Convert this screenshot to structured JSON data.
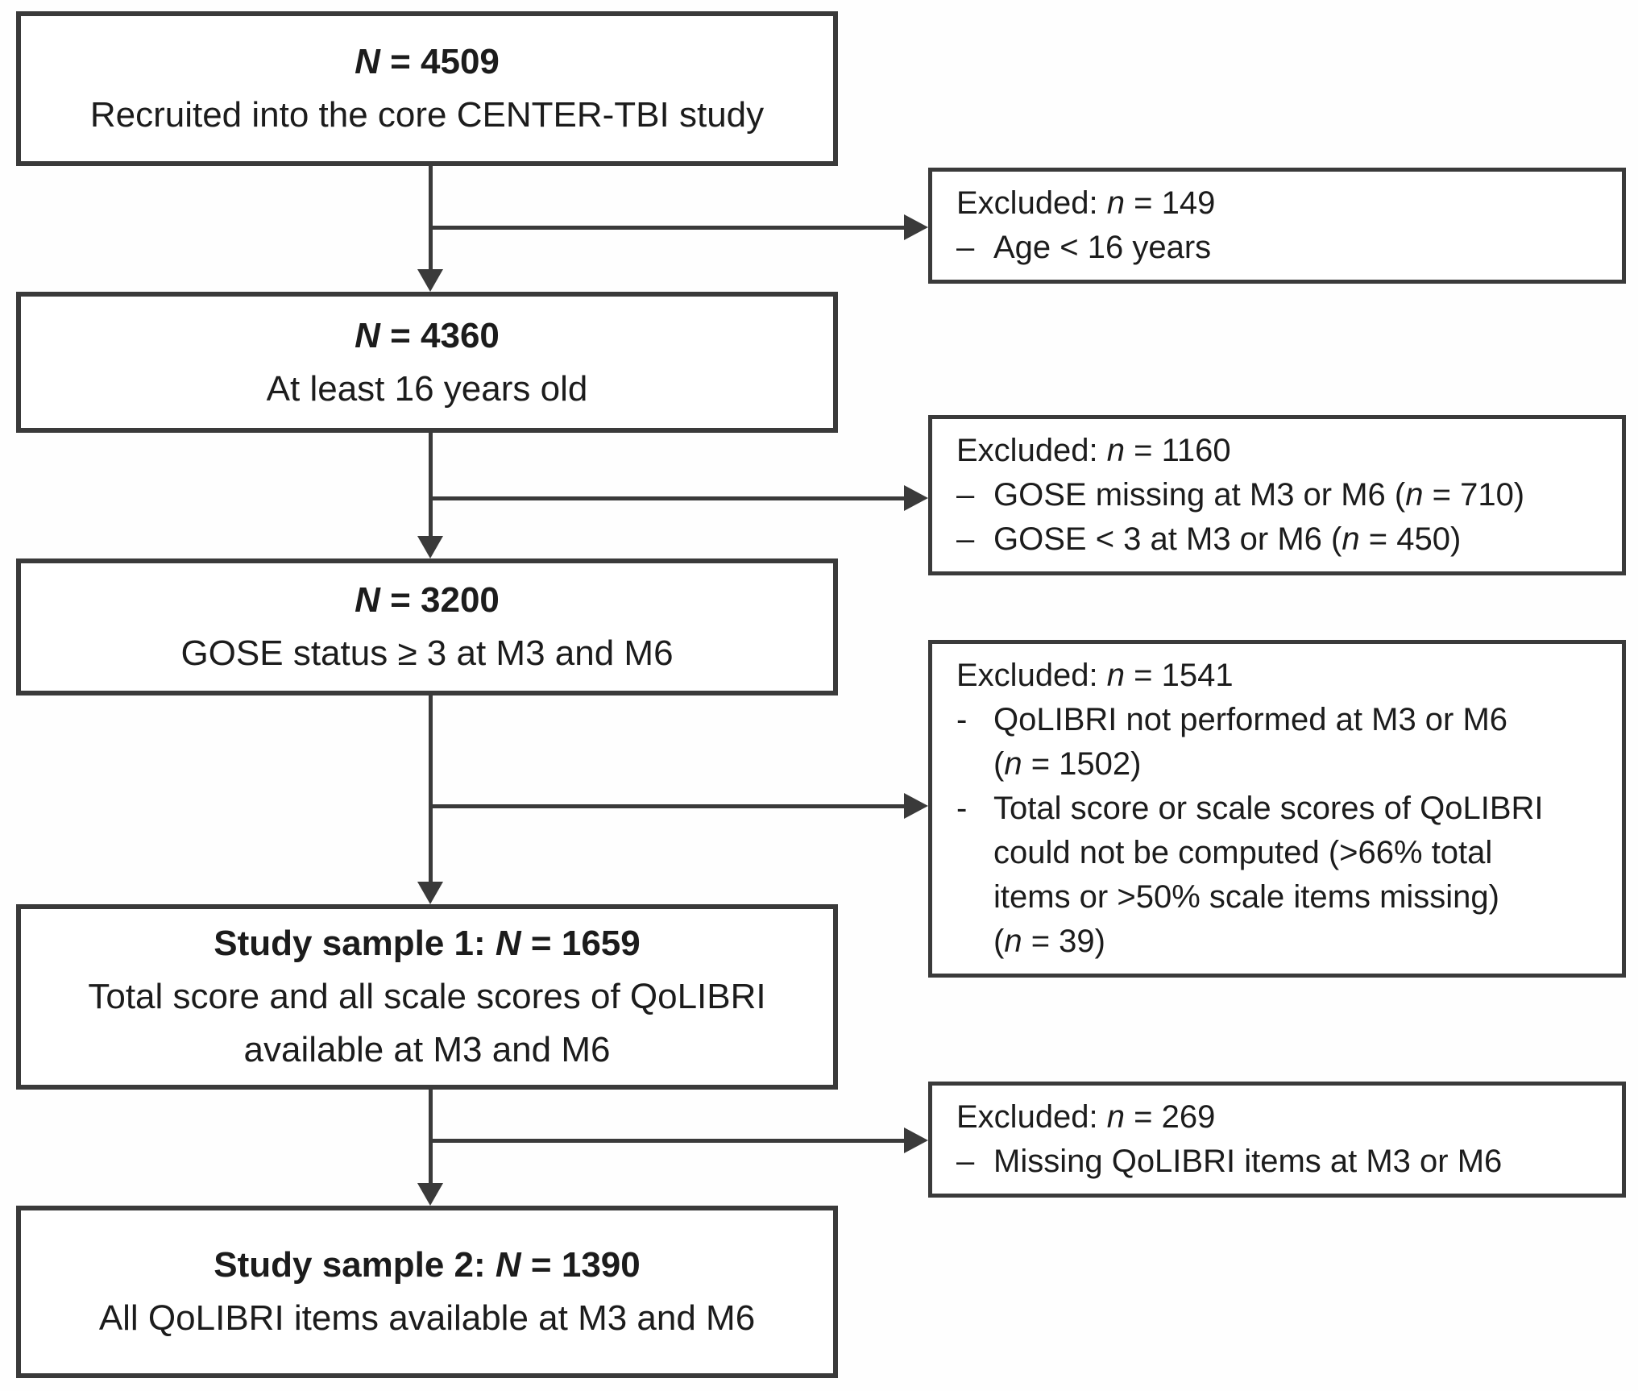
{
  "colors": {
    "border": "#3a3a3a",
    "text": "#1c1c1c",
    "background": "#ffffff"
  },
  "main_boxes": [
    {
      "name": "recruited",
      "heading": [
        {
          "t": "N",
          "bi": true
        },
        {
          "t": " = 4509",
          "b": true
        }
      ],
      "body_lines": [
        "Recruited into the core CENTER-TBI study"
      ]
    },
    {
      "name": "age-16plus",
      "heading": [
        {
          "t": "N",
          "bi": true
        },
        {
          "t": " = 4360",
          "b": true
        }
      ],
      "body_lines": [
        "At least 16 years old"
      ]
    },
    {
      "name": "gose-ge3",
      "heading": [
        {
          "t": "N",
          "bi": true
        },
        {
          "t": " = 3200",
          "b": true
        }
      ],
      "body_lines": [
        "GOSE status ≥ 3 at M3 and M6"
      ]
    },
    {
      "name": "study-sample-1",
      "heading": [
        {
          "t": "Study sample 1: ",
          "b": true
        },
        {
          "t": "N",
          "bi": true
        },
        {
          "t": " = 1659",
          "b": true
        }
      ],
      "body_lines": [
        "Total score and all scale scores of QoLIBRI",
        "available at M3 and M6"
      ]
    },
    {
      "name": "study-sample-2",
      "heading": [
        {
          "t": "Study sample 2: ",
          "b": true
        },
        {
          "t": "N",
          "bi": true
        },
        {
          "t": " = 1390",
          "b": true
        }
      ],
      "body_lines": [
        "All QoLIBRI items available at M3 and M6"
      ]
    }
  ],
  "exclusion_boxes": [
    {
      "name": "excluded-under-16",
      "heading": [
        {
          "t": "Excluded: "
        },
        {
          "t": "n",
          "i": true
        },
        {
          "t": " = 149"
        }
      ],
      "items": [
        {
          "bullet": "–",
          "lines": [
            [
              {
                "t": "Age < 16 years"
              }
            ]
          ]
        }
      ]
    },
    {
      "name": "excluded-gose",
      "heading": [
        {
          "t": "Excluded: "
        },
        {
          "t": "n",
          "i": true
        },
        {
          "t": " = 1160"
        }
      ],
      "items": [
        {
          "bullet": "–",
          "lines": [
            [
              {
                "t": "GOSE missing at M3 or M6 ("
              },
              {
                "t": "n",
                "i": true
              },
              {
                "t": " = 710)"
              }
            ]
          ]
        },
        {
          "bullet": "–",
          "lines": [
            [
              {
                "t": "GOSE < 3 at M3 or M6 ("
              },
              {
                "t": "n",
                "i": true
              },
              {
                "t": " = 450)"
              }
            ]
          ]
        }
      ]
    },
    {
      "name": "excluded-qolibri",
      "heading": [
        {
          "t": "Excluded: "
        },
        {
          "t": "n",
          "i": true
        },
        {
          "t": " = 1541"
        }
      ],
      "items": [
        {
          "bullet": "-",
          "lines": [
            [
              {
                "t": "QoLIBRI not performed at M3 or M6"
              }
            ],
            [
              {
                "t": "("
              },
              {
                "t": "n",
                "i": true
              },
              {
                "t": " = 1502)"
              }
            ]
          ]
        },
        {
          "bullet": "-",
          "lines": [
            [
              {
                "t": "Total score or scale scores of QoLIBRI"
              }
            ],
            [
              {
                "t": "could not be computed (>66% total"
              }
            ],
            [
              {
                "t": "items or >50% scale items missing)"
              }
            ],
            [
              {
                "t": "("
              },
              {
                "t": "n",
                "i": true
              },
              {
                "t": " = 39)"
              }
            ]
          ]
        }
      ]
    },
    {
      "name": "excluded-missing-items",
      "heading": [
        {
          "t": "Excluded: "
        },
        {
          "t": "n",
          "i": true
        },
        {
          "t": " = 269"
        }
      ],
      "items": [
        {
          "bullet": "–",
          "lines": [
            [
              {
                "t": "Missing QoLIBRI items at M3 or M6"
              }
            ]
          ]
        }
      ]
    }
  ]
}
